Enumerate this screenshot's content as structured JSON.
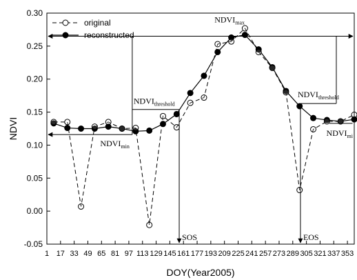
{
  "chart_data": {
    "type": "line",
    "xlabel": "DOY(Year2005)",
    "ylabel": "NDVI",
    "xlim": [
      1,
      361
    ],
    "ylim": [
      -0.05,
      0.3
    ],
    "x_tick_labels": [
      "1",
      "17",
      "33",
      "49",
      "65",
      "81",
      "97",
      "113",
      "129",
      "145",
      "161",
      "177",
      "193",
      "209",
      "225",
      "241",
      "257",
      "273",
      "289",
      "305",
      "321",
      "337",
      "353"
    ],
    "y_ticks": [
      -0.05,
      0.0,
      0.05,
      0.1,
      0.15,
      0.2,
      0.25,
      0.3
    ],
    "y_tick_labels": [
      "-0.05",
      "0.00",
      "0.05",
      "0.10",
      "0.15",
      "0.20",
      "0.25",
      "0.30"
    ],
    "x": [
      9,
      25,
      41,
      57,
      73,
      89,
      105,
      121,
      137,
      153,
      169,
      185,
      201,
      217,
      233,
      249,
      265,
      281,
      297,
      313,
      329,
      345,
      361
    ],
    "series": [
      {
        "name": "original",
        "marker": "open-circle",
        "line": "dashed",
        "values": [
          0.135,
          0.135,
          0.007,
          0.128,
          0.135,
          0.125,
          0.126,
          -0.021,
          0.144,
          0.127,
          0.164,
          0.172,
          0.253,
          0.257,
          0.277,
          0.241,
          0.217,
          0.18,
          0.032,
          0.124,
          0.136,
          0.136,
          0.146
        ]
      },
      {
        "name": "reconstructed",
        "marker": "filled-circle",
        "line": "solid",
        "values": [
          0.133,
          0.126,
          0.125,
          0.125,
          0.128,
          0.125,
          0.121,
          0.122,
          0.132,
          0.147,
          0.179,
          0.205,
          0.241,
          0.263,
          0.267,
          0.245,
          0.218,
          0.182,
          0.159,
          0.141,
          0.138,
          0.136,
          0.139
        ]
      }
    ],
    "legend": {
      "position": "top-left"
    },
    "annotations": {
      "ndvi_max": {
        "base": "NDVI",
        "sub": "max",
        "value": 0.265
      },
      "ndvi_min": {
        "base": "NDVI",
        "sub": "min",
        "value": 0.116
      },
      "ndvi_min_right": {
        "base": "NDVI",
        "sub": "mi"
      },
      "threshold_left": {
        "base": "NDVI",
        "sub": "threshold",
        "value": 0.154
      },
      "threshold_right": {
        "base": "NDVI",
        "sub": "threshold",
        "value": 0.163
      },
      "sos": {
        "label": "SOS",
        "doy": 156
      },
      "eos": {
        "label": "EOS",
        "doy": 298
      },
      "span_left_doy": 101,
      "span_right_doy": 340,
      "min_right_doy": 359
    },
    "colors": {
      "axis": "#000000",
      "series": "#000000"
    }
  }
}
